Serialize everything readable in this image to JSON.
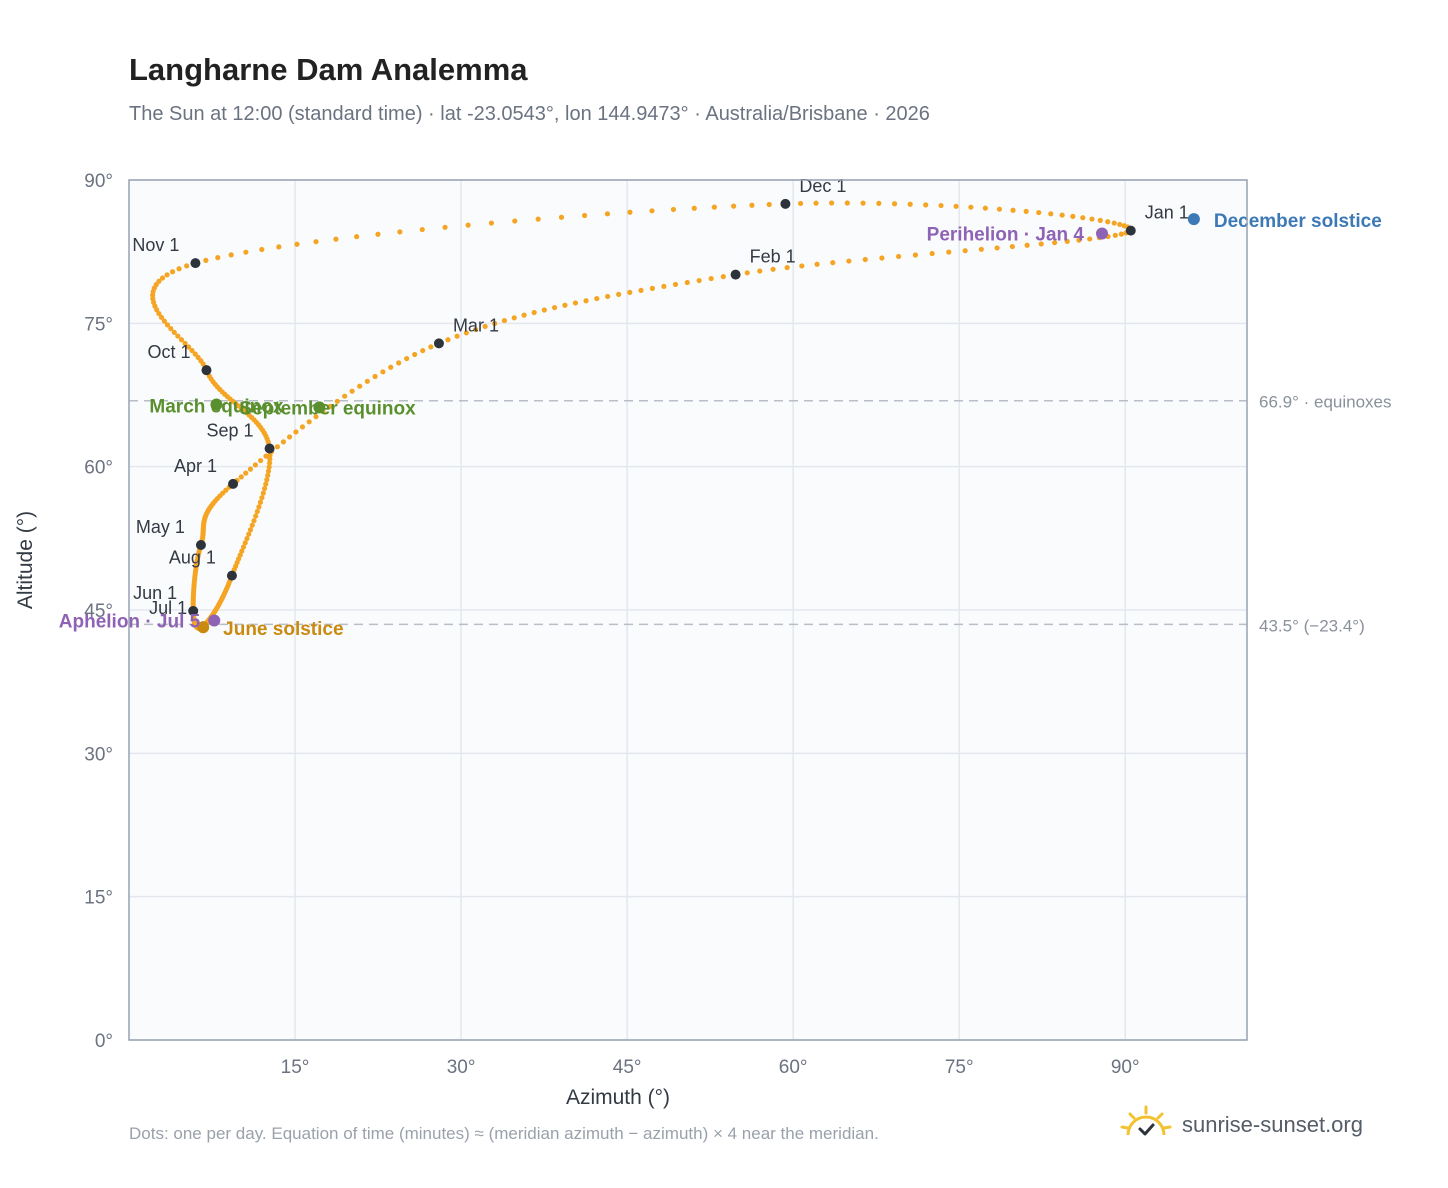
{
  "header": {
    "title": "Langharne Dam Analemma",
    "subtitle": "The Sun at 12:00 (standard time) · lat -23.0543°, lon 144.9473° · Australia/Brisbane · 2026"
  },
  "footer": {
    "note": "Dots: one per day. Equation of time (minutes) ≈ (meridian azimuth − azimuth) × 4 near the meridian.",
    "brand": "sunrise-sunset.org",
    "brand_icon": "sun-logo-icon"
  },
  "colors": {
    "path": "#f5a524",
    "month_marker": "#2d333b",
    "equinox": "#5a8f2e",
    "june_solstice": "#c98a0f",
    "december_solstice": "#3d7ab5",
    "apsis": "#8e63b5",
    "grid": "#e3e8ee",
    "plot_bg": "#fafbfd",
    "frame": "#98a2b3"
  },
  "chart_data": {
    "type": "scatter",
    "xlabel": "Azimuth (°)",
    "ylabel": "Altitude (°)",
    "xlim": [
      0,
      101
    ],
    "ylim": [
      0,
      90
    ],
    "xticks": [
      15,
      30,
      45,
      60,
      75,
      90
    ],
    "xtick_labels": [
      "15°",
      "30°",
      "45°",
      "60°",
      "75°",
      "90°"
    ],
    "yticks": [
      0,
      15,
      30,
      45,
      60,
      75,
      90
    ],
    "ytick_labels": [
      "0°",
      "15°",
      "30°",
      "45°",
      "60°",
      "75°",
      "90°"
    ],
    "grid": true,
    "reference_lines": [
      {
        "y": 66.9,
        "label": "66.9° · equinoxes"
      },
      {
        "y": 43.5,
        "label": "43.5° (−23.4°)"
      }
    ],
    "analemma_path_markers": [
      {
        "label": "Jan 1",
        "x": 90.5,
        "y": 84.7
      },
      {
        "label": "Feb 1",
        "x": 54.8,
        "y": 80.1
      },
      {
        "label": "Mar 1",
        "x": 28.0,
        "y": 72.9
      },
      {
        "label": "Apr 1",
        "x": 9.4,
        "y": 58.2
      },
      {
        "label": "May 1",
        "x": 6.5,
        "y": 51.8
      },
      {
        "label": "Jun 1",
        "x": 5.8,
        "y": 44.9
      },
      {
        "label": "Jul 1",
        "x": 6.7,
        "y": 43.3
      },
      {
        "label": "Aug 1",
        "x": 9.3,
        "y": 48.6
      },
      {
        "label": "Sep 1",
        "x": 12.7,
        "y": 61.9
      },
      {
        "label": "Oct 1",
        "x": 7.0,
        "y": 70.1
      },
      {
        "label": "Nov 1",
        "x": 6.0,
        "y": 81.3
      },
      {
        "label": "Dec 1",
        "x": 59.3,
        "y": 87.5
      }
    ],
    "events": [
      {
        "label": "March equinox",
        "x": 7.9,
        "y": 66.5,
        "kind": "equinox"
      },
      {
        "label": "September equinox",
        "x": 17.2,
        "y": 66.2,
        "kind": "equinox"
      },
      {
        "label": "June solstice",
        "x": 6.7,
        "y": 43.2,
        "kind": "june_solstice"
      },
      {
        "label": "December solstice",
        "x": 96.2,
        "y": 85.9,
        "kind": "december_solstice"
      },
      {
        "label": "Aphelion · Jul 5",
        "x": 7.7,
        "y": 43.9,
        "kind": "apsis"
      },
      {
        "label": "Perihelion · Jan 4",
        "x": 87.9,
        "y": 84.4,
        "kind": "apsis"
      }
    ]
  }
}
